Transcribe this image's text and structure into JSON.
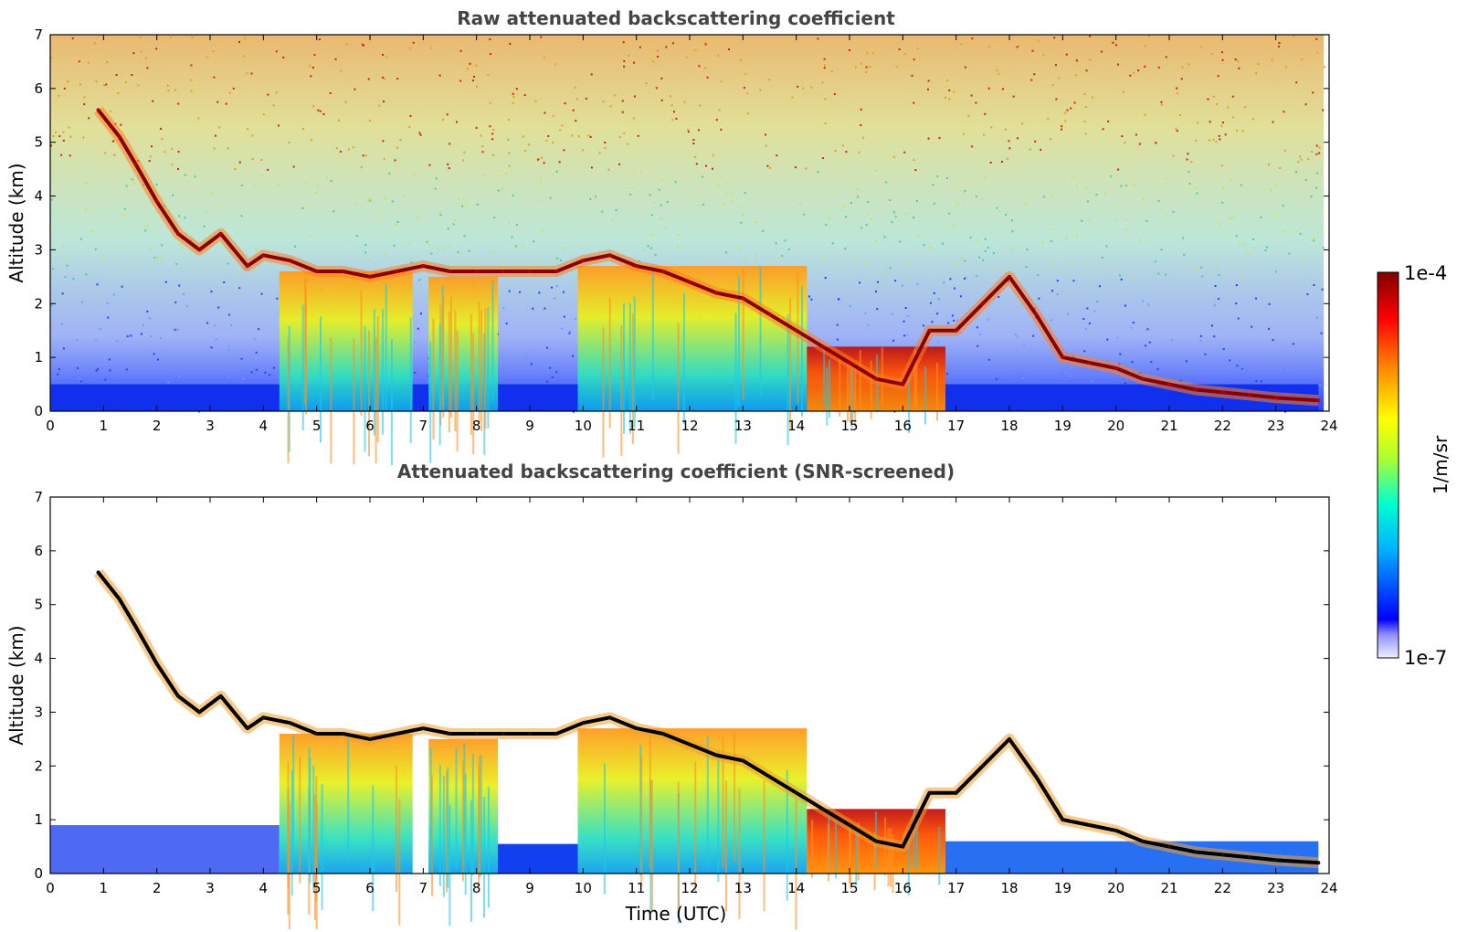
{
  "chart_data": [
    {
      "type": "heatmap",
      "title": "Raw attenuated backscattering coefficient",
      "xlabel": "",
      "ylabel": "Altitude (km)",
      "xlim": [
        0,
        24
      ],
      "ylim": [
        0,
        7
      ],
      "x_ticks": [
        "0",
        "1",
        "2",
        "3",
        "4",
        "5",
        "6",
        "7",
        "8",
        "9",
        "10",
        "11",
        "12",
        "13",
        "14",
        "15",
        "16",
        "17",
        "18",
        "19",
        "20",
        "21",
        "22",
        "23",
        "24"
      ],
      "y_ticks": [
        "0",
        "1",
        "2",
        "3",
        "4",
        "5",
        "6",
        "7"
      ],
      "cloud_layer_km": [
        [
          0.9,
          5.6
        ],
        [
          1.3,
          5.1
        ],
        [
          1.6,
          4.6
        ],
        [
          2.0,
          3.9
        ],
        [
          2.4,
          3.3
        ],
        [
          2.8,
          3.0
        ],
        [
          3.2,
          3.3
        ],
        [
          3.7,
          2.7
        ],
        [
          4.0,
          2.9
        ],
        [
          4.5,
          2.8
        ],
        [
          5.0,
          2.6
        ],
        [
          5.5,
          2.6
        ],
        [
          6.0,
          2.5
        ],
        [
          6.5,
          2.6
        ],
        [
          7.0,
          2.7
        ],
        [
          7.5,
          2.6
        ],
        [
          8.0,
          2.6
        ],
        [
          8.5,
          2.6
        ],
        [
          9.0,
          2.6
        ],
        [
          9.5,
          2.6
        ],
        [
          10.0,
          2.8
        ],
        [
          10.5,
          2.9
        ],
        [
          11.0,
          2.7
        ],
        [
          11.5,
          2.6
        ],
        [
          12.0,
          2.4
        ],
        [
          12.5,
          2.2
        ],
        [
          13.0,
          2.1
        ],
        [
          13.5,
          1.8
        ],
        [
          14.0,
          1.5
        ],
        [
          14.5,
          1.2
        ],
        [
          15.0,
          0.9
        ],
        [
          15.5,
          0.6
        ],
        [
          16.0,
          0.5
        ],
        [
          16.5,
          1.5
        ],
        [
          17.0,
          1.5
        ],
        [
          17.5,
          2.0
        ],
        [
          18.0,
          2.5
        ],
        [
          18.5,
          1.8
        ],
        [
          19.0,
          1.0
        ],
        [
          19.5,
          0.9
        ],
        [
          20.0,
          0.8
        ],
        [
          20.5,
          0.6
        ],
        [
          21.0,
          0.5
        ],
        [
          21.5,
          0.4
        ],
        [
          22.0,
          0.35
        ],
        [
          22.5,
          0.3
        ],
        [
          23.0,
          0.25
        ],
        [
          23.8,
          0.2
        ]
      ],
      "aerosol_columns": [
        {
          "from": 4.3,
          "to": 6.8,
          "top_km": 2.6
        },
        {
          "from": 7.1,
          "to": 8.4,
          "top_km": 2.5
        },
        {
          "from": 9.9,
          "to": 14.2,
          "top_km": 2.7
        },
        {
          "from": 14.2,
          "to": 16.8,
          "top_km": 1.2
        }
      ]
    },
    {
      "type": "heatmap",
      "title": "Attenuated backscattering coefficient (SNR-screened)",
      "xlabel": "Time (UTC)",
      "ylabel": "Altitude (km)",
      "xlim": [
        0,
        24
      ],
      "ylim": [
        0,
        7
      ],
      "x_ticks": [
        "0",
        "1",
        "2",
        "3",
        "4",
        "5",
        "6",
        "7",
        "8",
        "9",
        "10",
        "11",
        "12",
        "13",
        "14",
        "15",
        "16",
        "17",
        "18",
        "19",
        "20",
        "21",
        "22",
        "23",
        "24"
      ],
      "y_ticks": [
        "0",
        "1",
        "2",
        "3",
        "4",
        "5",
        "6",
        "7"
      ]
    }
  ],
  "colorbar": {
    "label": "1/m/sr",
    "max_label": "1e-4",
    "min_label": "1e-7",
    "scale": "log",
    "colors": [
      "#f0f0ff",
      "#0000ff",
      "#00b0ff",
      "#00ffd0",
      "#b0ff30",
      "#ffff00",
      "#ff8000",
      "#ff0000",
      "#800000"
    ]
  }
}
